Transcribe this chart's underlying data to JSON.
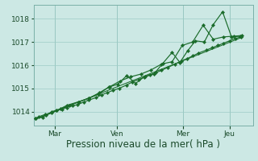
{
  "bg_color": "#cce8e4",
  "grid_color": "#9eccc6",
  "line_color": "#1a6b2a",
  "marker_color": "#1a6b2a",
  "xlabel": "Pression niveau de la mer( hPa )",
  "xlabel_fontsize": 8.5,
  "tick_fontsize": 6.5,
  "ylim": [
    1013.4,
    1018.6
  ],
  "yticks": [
    1014,
    1015,
    1016,
    1017,
    1018
  ],
  "x_tick_labels": [
    "Mar",
    "Ven",
    "Mer",
    "Jeu"
  ],
  "x_tick_positions": [
    0.5,
    2.1,
    3.8,
    5.0
  ],
  "xlim": [
    -0.05,
    5.6
  ],
  "series1_x": [
    0.0,
    0.08,
    0.25,
    0.42,
    0.55,
    0.68,
    0.8,
    0.95,
    1.08,
    1.25,
    1.38,
    1.55,
    1.7,
    1.85,
    2.0,
    2.15,
    2.35,
    2.5,
    2.65,
    2.8,
    2.95,
    3.1,
    3.25,
    3.4,
    3.6,
    3.75,
    3.9,
    4.05,
    4.2,
    4.4,
    4.55,
    4.7,
    4.85,
    5.0,
    5.15,
    5.3
  ],
  "series1_y": [
    1013.7,
    1013.78,
    1013.88,
    1013.95,
    1014.05,
    1014.1,
    1014.18,
    1014.25,
    1014.3,
    1014.42,
    1014.5,
    1014.6,
    1014.72,
    1014.82,
    1014.92,
    1015.0,
    1015.15,
    1015.28,
    1015.38,
    1015.48,
    1015.58,
    1015.68,
    1015.78,
    1015.9,
    1016.05,
    1016.18,
    1016.28,
    1016.4,
    1016.52,
    1016.65,
    1016.75,
    1016.85,
    1016.95,
    1017.05,
    1017.15,
    1017.22
  ],
  "series2_x": [
    0.0,
    0.18,
    0.42,
    0.65,
    0.88,
    1.12,
    1.38,
    1.62,
    1.88,
    2.12,
    2.35,
    2.58,
    2.82,
    3.05,
    3.28,
    3.52,
    3.72,
    3.92,
    4.12,
    4.35,
    4.58,
    4.82,
    5.05,
    5.28
  ],
  "series2_y": [
    1013.7,
    1013.76,
    1014.0,
    1014.12,
    1014.28,
    1014.42,
    1014.58,
    1014.75,
    1015.05,
    1015.18,
    1015.55,
    1015.22,
    1015.52,
    1015.62,
    1016.08,
    1016.55,
    1016.12,
    1016.62,
    1017.05,
    1017.0,
    1017.75,
    1018.3,
    1017.22,
    1017.25
  ],
  "series3_x": [
    0.0,
    0.28,
    0.55,
    0.82,
    1.1,
    1.38,
    1.65,
    1.92,
    2.18,
    2.45,
    2.72,
    2.98,
    3.25,
    3.52,
    3.78,
    4.05,
    4.32,
    4.58,
    4.85,
    5.12,
    5.32
  ],
  "series3_y": [
    1013.7,
    1013.85,
    1014.05,
    1014.28,
    1014.42,
    1014.58,
    1014.82,
    1015.08,
    1015.32,
    1015.5,
    1015.62,
    1015.8,
    1016.05,
    1016.15,
    1016.85,
    1017.0,
    1017.72,
    1017.12,
    1017.22,
    1017.25,
    1017.28
  ],
  "trend_x": [
    0.0,
    5.35
  ],
  "trend_y": [
    1013.68,
    1017.22
  ]
}
